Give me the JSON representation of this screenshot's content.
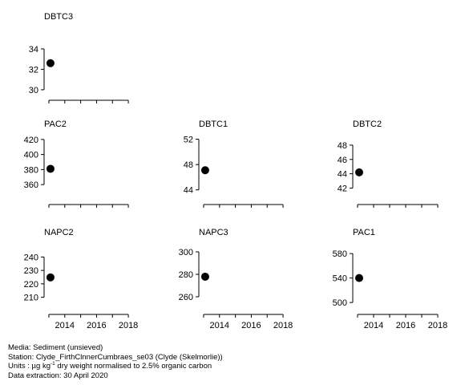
{
  "chart_data": [
    {
      "type": "scatter",
      "title": "DBTC3",
      "ylim": [
        29.6,
        35.8
      ],
      "yticks": [
        30,
        32,
        34
      ],
      "xlim": [
        2012.8,
        2018.4
      ],
      "xticks": [
        2013,
        2014,
        2015,
        2016,
        2017,
        2018
      ],
      "xticklabels": [],
      "points": [
        {
          "x": 2013.1,
          "y": 32.6
        }
      ]
    },
    {
      "type": "scatter",
      "title": "PAC2",
      "ylim": [
        342,
        422
      ],
      "yticks": [
        360,
        380,
        400,
        420
      ],
      "xlim": [
        2012.8,
        2018.4
      ],
      "xticks": [
        2013,
        2014,
        2015,
        2016,
        2017,
        2018
      ],
      "xticklabels": [],
      "points": [
        {
          "x": 2013.1,
          "y": 381
        }
      ]
    },
    {
      "type": "scatter",
      "title": "DBTC1",
      "ylim": [
        42.7,
        52.2
      ],
      "yticks": [
        44,
        48,
        52
      ],
      "xlim": [
        2012.8,
        2018.4
      ],
      "xticks": [
        2013,
        2014,
        2015,
        2016,
        2017,
        2018
      ],
      "xticklabels": [],
      "points": [
        {
          "x": 2013.1,
          "y": 47.1
        }
      ]
    },
    {
      "type": "scatter",
      "title": "DBTC2",
      "ylim": [
        40.6,
        49.0
      ],
      "yticks": [
        42,
        44,
        46,
        48
      ],
      "xlim": [
        2012.8,
        2018.4
      ],
      "xticks": [
        2013,
        2014,
        2015,
        2016,
        2017,
        2018
      ],
      "xticklabels": [],
      "points": [
        {
          "x": 2013.1,
          "y": 44.2
        }
      ]
    },
    {
      "type": "scatter",
      "title": "NAPC2",
      "ylim": [
        202,
        248
      ],
      "yticks": [
        210,
        220,
        230,
        240
      ],
      "xlim": [
        2012.8,
        2018.4
      ],
      "xticks": [
        2013,
        2014,
        2015,
        2016,
        2017,
        2018
      ],
      "xticklabels": [
        "2014",
        "2016",
        "2018"
      ],
      "points": [
        {
          "x": 2013.1,
          "y": 224.8
        }
      ]
    },
    {
      "type": "scatter",
      "title": "NAPC3",
      "ylim": [
        250,
        305
      ],
      "yticks": [
        260,
        280,
        300
      ],
      "xlim": [
        2012.8,
        2018.4
      ],
      "xticks": [
        2013,
        2014,
        2015,
        2016,
        2017,
        2018
      ],
      "xticklabels": [
        "2014",
        "2016",
        "2018"
      ],
      "points": [
        {
          "x": 2013.1,
          "y": 277.9
        }
      ]
    },
    {
      "type": "scatter",
      "title": "PAC1",
      "ylim": [
        491,
        592
      ],
      "yticks": [
        500,
        540,
        580
      ],
      "xlim": [
        2012.8,
        2018.4
      ],
      "xticks": [
        2013,
        2014,
        2015,
        2016,
        2017,
        2018
      ],
      "xticklabels": [
        "2014",
        "2016",
        "2018"
      ],
      "points": [
        {
          "x": 2013.1,
          "y": 540
        }
      ]
    }
  ],
  "footer": {
    "media": "Media: Sediment (unsieved)",
    "station": "Station: Clyde_FirthClnnerCumbraes_se03 (Clyde (Skelmorlie))",
    "units_prefix": "Units : µg kg",
    "units_sup": "-1",
    "units_suffix": " dry weight normalised to 2.5% organic carbon",
    "extraction": "Data extraction: 30 April 2020"
  },
  "colors": {
    "points": "#000000",
    "axes": "#000000"
  }
}
